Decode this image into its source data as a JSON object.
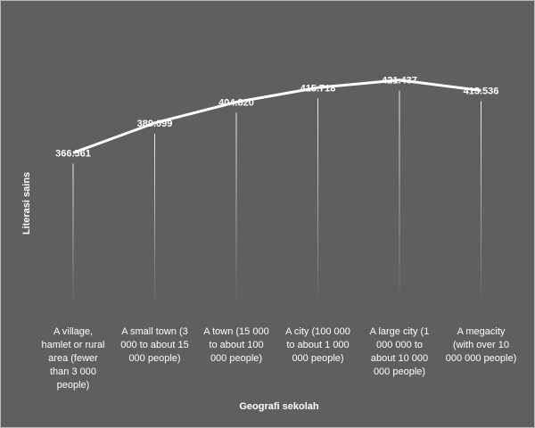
{
  "chart_data": {
    "type": "line",
    "title": "",
    "xlabel": "Geografi sekolah",
    "ylabel": "Literasi sains",
    "categories": [
      "A village, hamlet or rural area (fewer than 3 000 people)",
      "A small town (3 000 to about 15 000 people)",
      "A town (15 000 to about 100 000 people)",
      "A city (100 000 to about 1 000 000 people)",
      "A large city (1 000 000 to about 10 000 000 people)",
      "A megacity (with over 10 000 000 people)"
    ],
    "category_lines": [
      [
        "A village,",
        "hamlet or rural",
        "area (fewer",
        "than 3 000",
        "people)"
      ],
      [
        "A small town (3",
        "000 to about 15",
        "000 people)"
      ],
      [
        "A town (15 000",
        "to about 100",
        "000 people)"
      ],
      [
        "A city (100 000",
        "to about 1 000",
        "000 people)"
      ],
      [
        "A large city (1",
        "000 000 to",
        "about 10 000",
        "000 people)"
      ],
      [
        "A megacity",
        "(with over 10",
        "000 000 people)"
      ]
    ],
    "series": [
      {
        "values": [
          366.561,
          389.099,
          404.82,
          415.718,
          421.437,
          413.536
        ],
        "labels": [
          "366.561",
          "389.099",
          "404.820",
          "415.718",
          "421.437",
          "413.536"
        ]
      }
    ],
    "ylim": [
      250,
      430
    ],
    "grid": false,
    "legend": "none",
    "colors": {
      "background": "#5f5f5f",
      "line": "#ffffff",
      "text": "#ffffff",
      "border": "#b8b8b8"
    }
  }
}
